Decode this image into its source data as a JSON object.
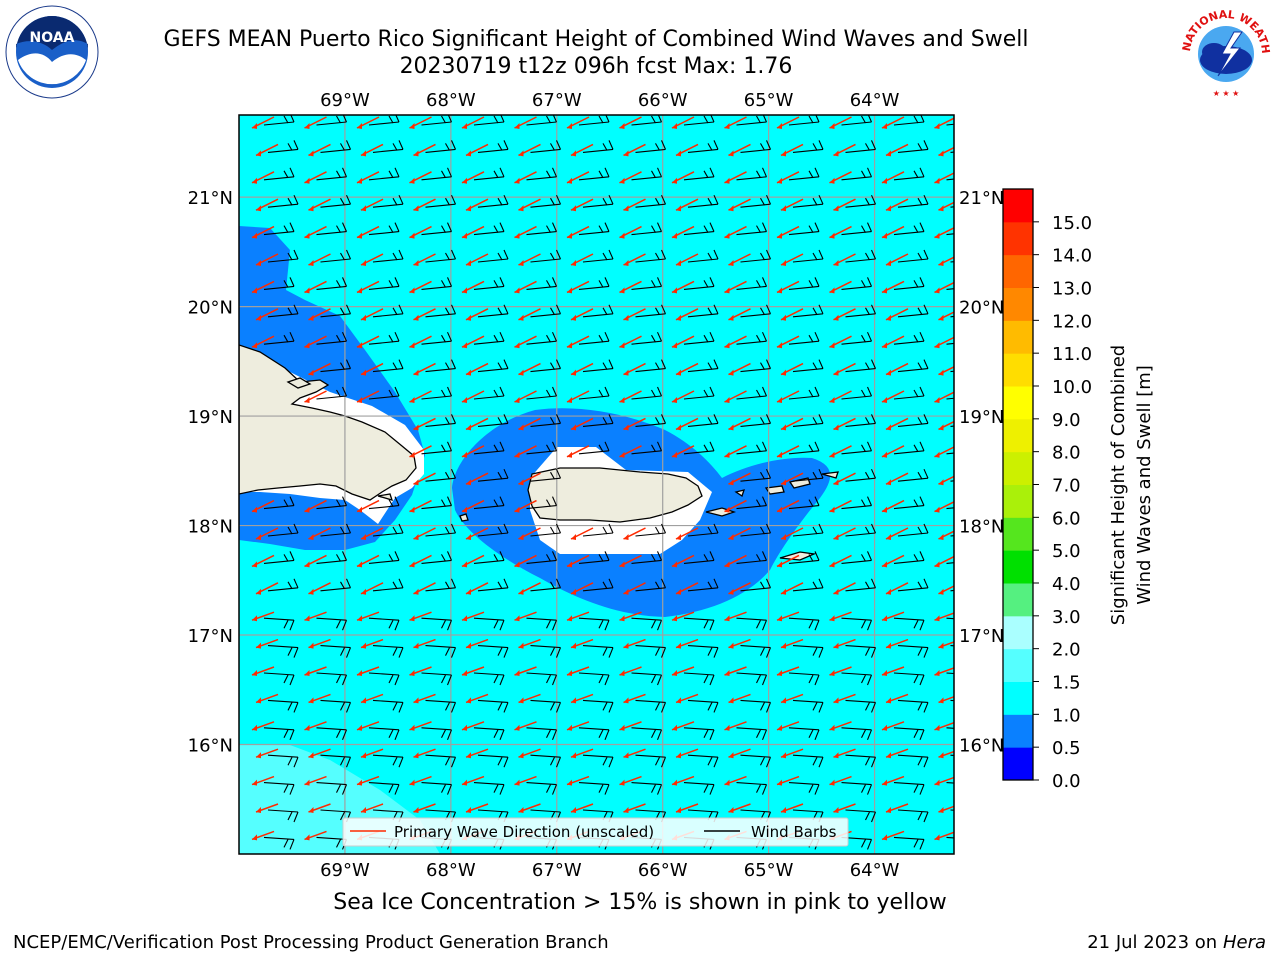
{
  "title": {
    "line1": "GEFS MEAN Puerto Rico Significant Height of Combined Wind Waves and Swell",
    "line2": "20230719 t12z 096h fcst   Max: 1.76"
  },
  "map": {
    "lon_ticks": [
      "69°W",
      "68°W",
      "67°W",
      "66°W",
      "65°W",
      "64°W"
    ],
    "lat_ticks": [
      "21°N",
      "20°N",
      "19°N",
      "18°N",
      "17°N",
      "16°N"
    ],
    "extent": {
      "lon_min": -70.0,
      "lon_max": -63.25,
      "lat_min": 15.0,
      "lat_max": 21.75
    },
    "colors": {
      "ocean": "#00ffff",
      "band_0_5_1_0": "#0a80ff",
      "band_1_5_2_0": "#55ffff",
      "land": "#eeedde",
      "wave_arrow": "#ff2a00",
      "wind_barb": "#000000"
    }
  },
  "legend": {
    "wave_label": "Primary Wave Direction (unscaled)",
    "barb_label": "Wind Barbs"
  },
  "colorbar": {
    "label_line1": "Significant Height of Combined",
    "label_line2": "Wind Waves and Swell [m]",
    "ticks": [
      "0.0",
      "0.5",
      "1.0",
      "1.5",
      "2.0",
      "3.0",
      "4.0",
      "5.0",
      "6.0",
      "7.0",
      "8.0",
      "9.0",
      "10.0",
      "11.0",
      "12.0",
      "13.0",
      "14.0",
      "15.0"
    ],
    "colors": [
      "#0000ff",
      "#0a80ff",
      "#00ffff",
      "#55ffff",
      "#aaffff",
      "#55f080",
      "#00e000",
      "#55e61e",
      "#aaf00a",
      "#ccf000",
      "#eef000",
      "#ffff00",
      "#ffdd00",
      "#ffbb00",
      "#ff8800",
      "#ff6600",
      "#ff3300",
      "#ff0000"
    ]
  },
  "sea_ice_note": "Sea Ice Concentration > 15% is shown in pink to yellow",
  "footer": {
    "left": "NCEP/EMC/Verification Post Processing Product Generation Branch",
    "right_prefix": "21 Jul 2023 on ",
    "right_machine": "Hera"
  },
  "logos": {
    "noaa": "NOAA",
    "nws": "NATIONAL WEATHER SERVICE"
  }
}
